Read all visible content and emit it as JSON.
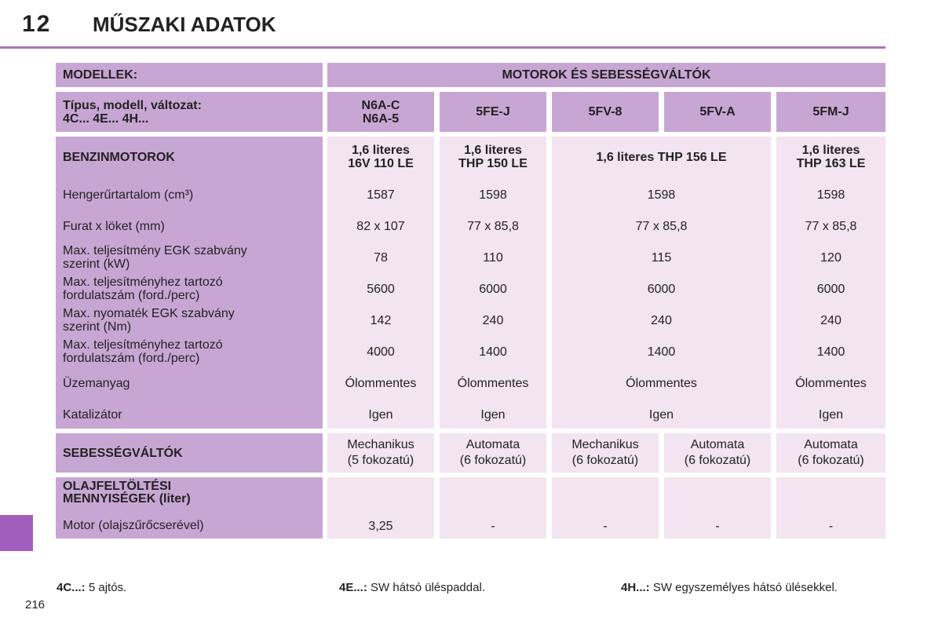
{
  "header": {
    "chapter": "12",
    "title": "MŰSZAKI ADATOK"
  },
  "page_number": "216",
  "table": {
    "models_label": "MODELLEK:",
    "engines_title": "MOTOROK ÉS SEBESSÉGVÁLTÓK",
    "type_label": [
      "Típus, modell, változat:",
      "4C... 4E... 4H..."
    ],
    "codes": {
      "c1": [
        "N6A-C",
        "N6A-5"
      ],
      "c2": "5FE-J",
      "c3": "5FV-8",
      "c4": "5FV-A",
      "c5": "5FM-J"
    },
    "petrol": {
      "label": "BENZINMOTOROK",
      "engines": {
        "e1": [
          "1,6 literes",
          "16V 110 LE"
        ],
        "e2": [
          "1,6 literes",
          "THP 150 LE"
        ],
        "e3": "1,6 literes THP 156 LE",
        "e5": [
          "1,6 literes",
          "THP 163 LE"
        ]
      },
      "rows": [
        {
          "label": [
            "Hengerűrtartalom (cm³)"
          ],
          "values": [
            "1587",
            "1598",
            "1598",
            "1598"
          ]
        },
        {
          "label": [
            "Furat x löket (mm)"
          ],
          "values": [
            "82 x 107",
            "77 x 85,8",
            "77 x 85,8",
            "77 x 85,8"
          ]
        },
        {
          "label": [
            "Max. teljesítmény EGK szabvány",
            "szerint (kW)"
          ],
          "values": [
            "78",
            "110",
            "115",
            "120"
          ]
        },
        {
          "label": [
            "Max. teljesítményhez tartozó",
            "fordulatszám (ford./perc)"
          ],
          "values": [
            "5600",
            "6000",
            "6000",
            "6000"
          ]
        },
        {
          "label": [
            "Max. nyomaték EGK szabvány",
            "szerint (Nm)"
          ],
          "values": [
            "142",
            "240",
            "240",
            "240"
          ]
        },
        {
          "label": [
            "Max. teljesítményhez tartozó",
            "fordulatszám (ford./perc)"
          ],
          "values": [
            "4000",
            "1400",
            "1400",
            "1400"
          ]
        },
        {
          "label": [
            "Üzemanyag"
          ],
          "values": [
            "Ólommentes",
            "Ólommentes",
            "Ólommentes",
            "Ólommentes"
          ]
        },
        {
          "label": [
            "Katalizátor"
          ],
          "values": [
            "Igen",
            "Igen",
            "Igen",
            "Igen"
          ]
        }
      ]
    },
    "gearbox": {
      "label": "SEBESSÉGVÁLTÓK",
      "values": [
        [
          "Mechanikus",
          "(5 fokozatú)"
        ],
        [
          "Automata",
          "(6 fokozatú)"
        ],
        [
          "Mechanikus",
          "(6 fokozatú)"
        ],
        [
          "Automata",
          "(6 fokozatú)"
        ],
        [
          "Automata",
          "(6 fokozatú)"
        ]
      ]
    },
    "oil": {
      "label": [
        "OLAJFELTÖLTÉSI",
        "MENNYISÉGEK (liter)"
      ],
      "engine_label": "Motor (olajszűrőcserével)",
      "values": [
        "3,25",
        "-",
        "-",
        "-",
        "-"
      ]
    }
  },
  "footnotes": [
    {
      "key": "4C...:",
      "text": " 5 ajtós."
    },
    {
      "key": "4E...:",
      "text": " SW hátsó üléspaddal."
    },
    {
      "key": "4H...:",
      "text": " SW egyszemélyes hátsó ülésekkel."
    }
  ]
}
